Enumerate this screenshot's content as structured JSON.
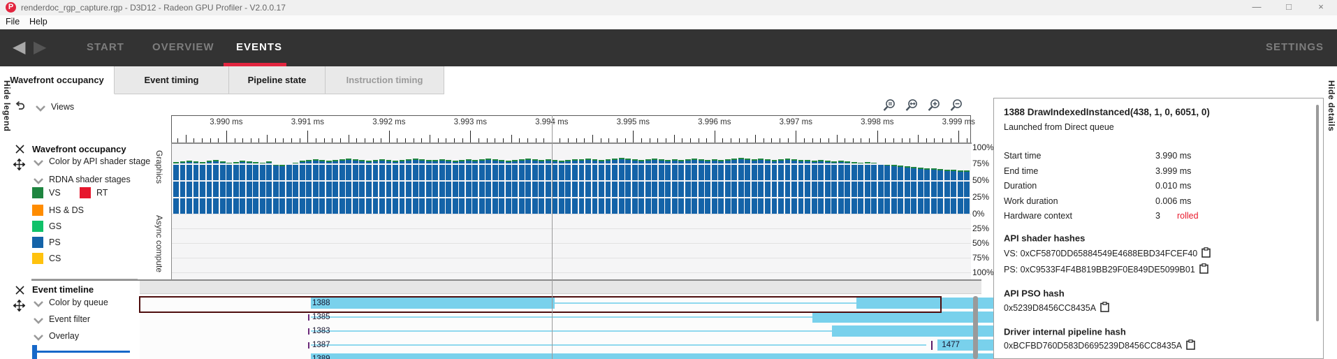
{
  "window": {
    "title": "renderdoc_rgp_capture.rgp - D3D12 - Radeon GPU Profiler - V2.0.0.17",
    "logo_letter": "P",
    "controls": [
      {
        "name": "minimize",
        "glyph": "—"
      },
      {
        "name": "maximize",
        "glyph": "□"
      },
      {
        "name": "close",
        "glyph": "×"
      }
    ]
  },
  "menu": {
    "file": "File",
    "help": "Help"
  },
  "nav": {
    "back_glyph": "◀",
    "forward_glyph": "▶",
    "items": [
      {
        "label": "START",
        "state": "inactive"
      },
      {
        "label": "OVERVIEW",
        "state": "inactive"
      },
      {
        "label": "EVENTS",
        "state": "active"
      }
    ],
    "settings": "SETTINGS",
    "accent_color": "#e2253f"
  },
  "tabs": [
    {
      "label": "Wavefront occupancy",
      "state": "active"
    },
    {
      "label": "Event timing",
      "state": "normal"
    },
    {
      "label": "Pipeline state",
      "state": "normal"
    },
    {
      "label": "Instruction timing",
      "state": "disabled"
    }
  ],
  "splitters": {
    "hide_legend": "Hide legend",
    "hide_details": "Hide details"
  },
  "sidebar": {
    "views_label": "Views",
    "occupancy_panel": {
      "title": "Wavefront occupancy",
      "rows": [
        "Color by API shader stage",
        "RDNA shader stages"
      ],
      "stages": [
        {
          "label": "VS",
          "color": "#1e8540"
        },
        {
          "label": "RT",
          "color": "#e6172d"
        },
        {
          "label": "HS & DS",
          "color": "#ff8c00"
        },
        {
          "label": "GS",
          "color": "#10c169"
        },
        {
          "label": "PS",
          "color": "#1463a8"
        },
        {
          "label": "CS",
          "color": "#ffc20e"
        }
      ]
    },
    "timeline_panel": {
      "title": "Event timeline",
      "rows": [
        "Color by queue",
        "Event filter",
        "Overlay"
      ]
    },
    "slider_color": "#1668c9"
  },
  "chart_data": {
    "type": "bar",
    "title": "Wavefront occupancy",
    "x_tick_labels": [
      "3.990 ms",
      "3.991 ms",
      "3.992 ms",
      "3.993 ms",
      "3.994 ms",
      "3.995 ms",
      "3.996 ms",
      "3.997 ms",
      "3.998 ms",
      "3.999 ms"
    ],
    "first_major_fraction": 0.068,
    "major_step_fraction": 0.10174,
    "marker_fraction": 0.476,
    "sections": [
      {
        "name": "Graphics",
        "y_tick_labels": [
          "100%",
          "75%",
          "50%",
          "25%",
          "0%"
        ]
      },
      {
        "name": "Async compute",
        "y_tick_labels": [
          "25%",
          "50%",
          "75%",
          "100%"
        ]
      }
    ],
    "series": [
      {
        "name": "PS",
        "color": "#1463a8",
        "values_pct": [
          75,
          76,
          77,
          76,
          75,
          77,
          78,
          76,
          74,
          75,
          77,
          76,
          75,
          74,
          76,
          72,
          71,
          73,
          74,
          77,
          78,
          79,
          78,
          77,
          78,
          79,
          80,
          79,
          78,
          77,
          78,
          79,
          78,
          77,
          78,
          79,
          80,
          79,
          78,
          78,
          79,
          78,
          77,
          78,
          79,
          78,
          79,
          80,
          79,
          78,
          77,
          78,
          79,
          80,
          79,
          78,
          79,
          78,
          77,
          78,
          79,
          79,
          80,
          79,
          78,
          79,
          80,
          81,
          80,
          79,
          78,
          79,
          80,
          79,
          78,
          79,
          78,
          79,
          80,
          79,
          78,
          79,
          78,
          79,
          80,
          81,
          80,
          79,
          80,
          79,
          78,
          79,
          80,
          79,
          78,
          78,
          77,
          78,
          77,
          76,
          77,
          76,
          75,
          74,
          75,
          74,
          73,
          72,
          71,
          70,
          69,
          68,
          67,
          66,
          66,
          65,
          64,
          64,
          63,
          63
        ]
      },
      {
        "name": "VS",
        "color": "#1e8540",
        "cap_pct": 2.5
      }
    ]
  },
  "timeline": {
    "bar_color": "#79d1ec",
    "selected_border_color": "#4d0d0d",
    "rows": [
      {
        "id": "1388",
        "selected": true,
        "segments": [
          {
            "type": "solid",
            "from": 0,
            "to": 0.305
          },
          {
            "type": "thin",
            "from": 0.305,
            "to": 0.683
          },
          {
            "type": "solid",
            "from": 0.683,
            "to": 1
          }
        ]
      },
      {
        "id": "1385",
        "left_tick": true,
        "segments": [
          {
            "type": "thin",
            "from": 0,
            "to": 0.628
          },
          {
            "type": "solid",
            "from": 0.628,
            "to": 1
          }
        ]
      },
      {
        "id": "1383",
        "left_tick": true,
        "segments": [
          {
            "type": "thin",
            "from": 0,
            "to": 0.653
          },
          {
            "type": "solid",
            "from": 0.653,
            "to": 1
          }
        ]
      },
      {
        "id": "1387",
        "left_tick": true,
        "marker_fraction": 0.777,
        "bar_label": "1477",
        "segments": [
          {
            "type": "thin",
            "from": 0,
            "to": 0.771
          },
          {
            "type": "solid",
            "from": 0.785,
            "to": 1
          }
        ]
      },
      {
        "id": "1389",
        "segments": [
          {
            "type": "solid",
            "from": 0,
            "to": 1
          }
        ]
      }
    ]
  },
  "details": {
    "title": "1388 DrawIndexedInstanced(438, 1, 0, 6051, 0)",
    "subtitle": "Launched from Direct queue",
    "rows": [
      {
        "label": "Start time",
        "value": "3.990 ms"
      },
      {
        "label": "End time",
        "value": "3.999 ms"
      },
      {
        "label": "Duration",
        "value": "0.010 ms"
      },
      {
        "label": "Work duration",
        "value": "0.006 ms"
      },
      {
        "label": "Hardware context",
        "value": "3",
        "flag": "rolled",
        "flag_color": "#e8192c"
      }
    ],
    "sections": [
      {
        "title": "API shader hashes",
        "lines": [
          {
            "prefix": "VS: ",
            "hash": "0xCF5870DD65884549E4688EBD34FCEF40"
          },
          {
            "prefix": "PS: ",
            "hash": "0xC9533F4F4B819BB29F0E849DE5099B01"
          }
        ]
      },
      {
        "title": "API PSO hash",
        "lines": [
          {
            "prefix": "",
            "hash": "0x5239D8456CC8435A"
          }
        ]
      },
      {
        "title": "Driver internal pipeline hash",
        "lines": [
          {
            "prefix": "",
            "hash": "0xBCFBD760D583D6695239D8456CC8435A"
          }
        ]
      }
    ]
  }
}
